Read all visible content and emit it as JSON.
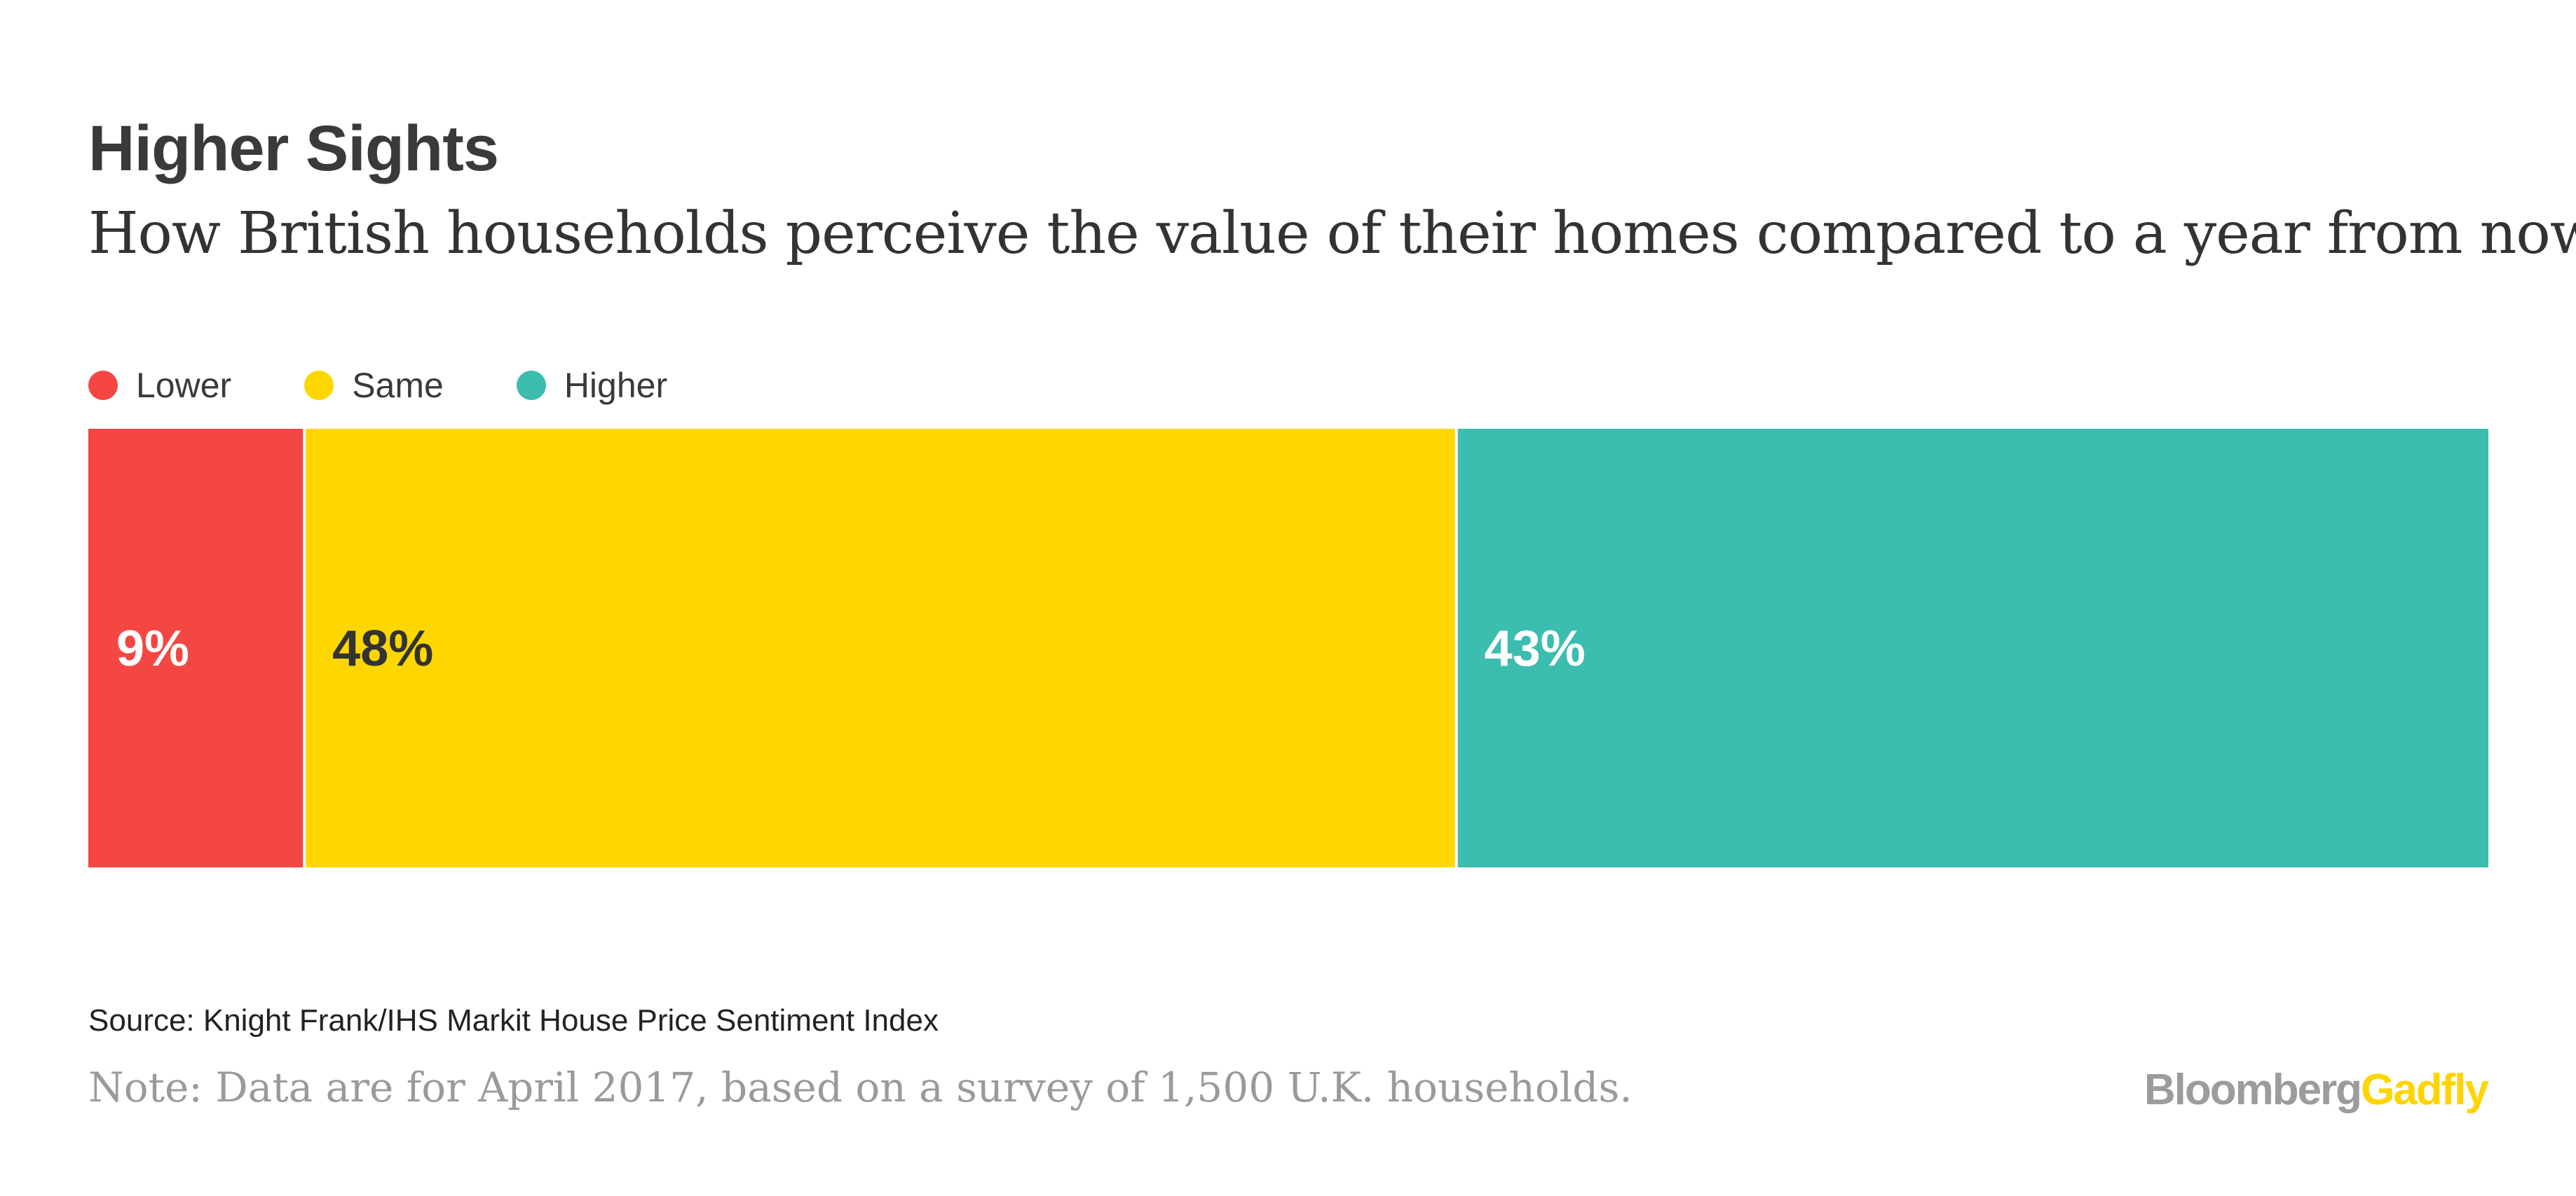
{
  "header": {
    "title": "Higher Sights",
    "subtitle": "How British households perceive the value of their homes compared to a year from now"
  },
  "legend": [
    {
      "label": "Lower",
      "color": "#f44642"
    },
    {
      "label": "Same",
      "color": "#fed700"
    },
    {
      "label": "Higher",
      "color": "#3bbdb0"
    }
  ],
  "chart_data": {
    "type": "bar",
    "orientation": "horizontal-stacked-100",
    "title": "Higher Sights",
    "subtitle": "How British households perceive the value of their homes compared to a year from now",
    "categories": [
      "Lower",
      "Same",
      "Higher"
    ],
    "values": [
      9,
      48,
      43
    ],
    "labels": [
      "9%",
      "48%",
      "43%"
    ],
    "unit": "%",
    "colors": [
      "#f44642",
      "#fed700",
      "#3bbdb0"
    ],
    "label_colors": [
      "#ffffff",
      "#333333",
      "#ffffff"
    ],
    "xlim": [
      0,
      100
    ],
    "grid": false,
    "legend_position": "top-left"
  },
  "footer": {
    "source": "Source: Knight Frank/IHS Markit House Price Sentiment Index",
    "note": "Note: Data are for April 2017, based on a survey of 1,500 U.K. households.",
    "logo_part1": "Bloomberg",
    "logo_part2": "Gadfly"
  }
}
